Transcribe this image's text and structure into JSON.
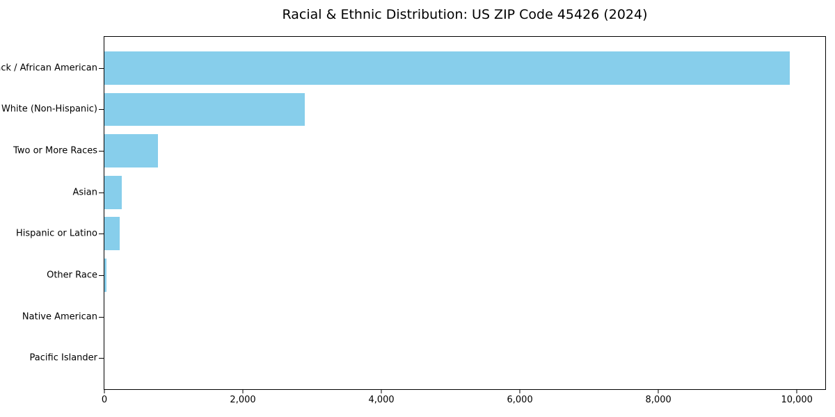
{
  "chart_data": {
    "type": "bar",
    "orientation": "horizontal",
    "title": "Racial & Ethnic Distribution: US ZIP Code 45426 (2024)",
    "categories": [
      "Black / African American",
      "White (Non-Hispanic)",
      "Two or More Races",
      "Asian",
      "Hispanic or Latino",
      "Other Race",
      "Native American",
      "Pacific Islander"
    ],
    "values": [
      9900,
      2890,
      770,
      250,
      220,
      35,
      0,
      0
    ],
    "xlabel": "",
    "ylabel": "",
    "xlim": [
      0,
      10410
    ],
    "xticks": [
      0,
      2000,
      4000,
      6000,
      8000,
      10000
    ],
    "xtick_labels": [
      "0",
      "2,000",
      "4,000",
      "6,000",
      "8,000",
      "10,000"
    ],
    "bar_color": "#87CEEB",
    "axis_color": "#000000",
    "text_color": "#000000",
    "background_color": "#FFFFFF",
    "grid": false,
    "legend": "none",
    "bar_height_fraction": 0.8
  }
}
